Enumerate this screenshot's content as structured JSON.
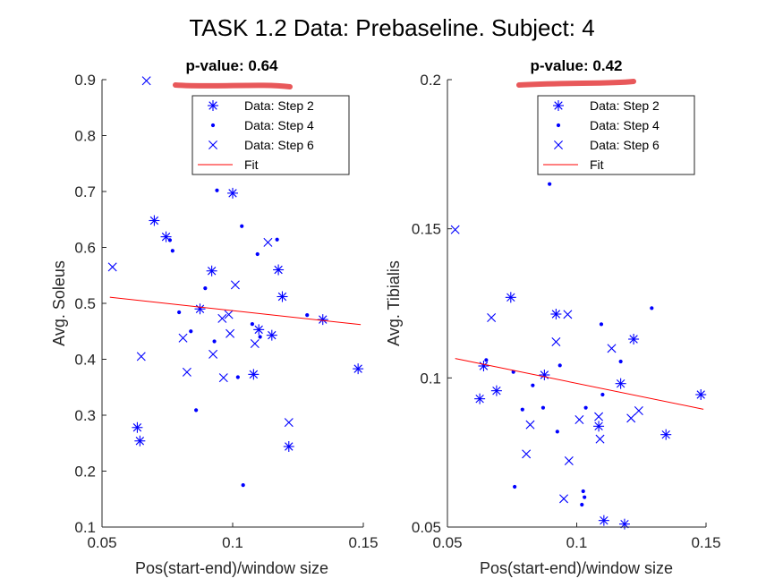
{
  "figure_title": "TASK 1.2 Data: Prebaseline. Subject: 4",
  "colors": {
    "marker": "#0000ff",
    "fit": "#ff0000",
    "highlight": "#e8585a",
    "axis": "#262626"
  },
  "chart_data": [
    {
      "type": "scatter",
      "annotation": "p-value: 0.64",
      "xlabel": "Pos(start-end)/window size",
      "ylabel": "Avg. Soleus",
      "xlim": [
        0.05,
        0.15
      ],
      "ylim": [
        0.1,
        0.9
      ],
      "xticks": [
        "0.05",
        "0.1",
        "0.15"
      ],
      "yticks": [
        "0.1",
        "0.2",
        "0.3",
        "0.4",
        "0.5",
        "0.6",
        "0.7",
        "0.8",
        "0.9"
      ],
      "legend": {
        "placement": "top-right",
        "entries": [
          "Data: Step 2",
          "Data: Step 4",
          "Data: Step 6",
          "Fit"
        ]
      },
      "series": [
        {
          "name": "Data: Step 2",
          "marker": "asterisk",
          "x": [
            0.0635,
            0.0645,
            0.07,
            0.0745,
            0.0875,
            0.092,
            0.1,
            0.108,
            0.11,
            0.115,
            0.1175,
            0.119,
            0.1215,
            0.1345,
            0.148
          ],
          "y": [
            0.278,
            0.254,
            0.648,
            0.619,
            0.49,
            0.558,
            0.697,
            0.373,
            0.453,
            0.443,
            0.56,
            0.512,
            0.244,
            0.471,
            0.383
          ]
        },
        {
          "name": "Data: Step 4",
          "marker": "dot",
          "x": [
            0.076,
            0.077,
            0.0795,
            0.084,
            0.086,
            0.0895,
            0.093,
            0.094,
            0.102,
            0.1035,
            0.104,
            0.1075,
            0.1095,
            0.1105,
            0.117,
            0.1285
          ],
          "y": [
            0.613,
            0.594,
            0.484,
            0.45,
            0.309,
            0.527,
            0.432,
            0.702,
            0.368,
            0.638,
            0.175,
            0.463,
            0.588,
            0.44,
            0.614,
            0.479
          ]
        },
        {
          "name": "Data: Step 6",
          "marker": "x",
          "x": [
            0.054,
            0.065,
            0.067,
            0.081,
            0.0825,
            0.0925,
            0.096,
            0.0965,
            0.0985,
            0.099,
            0.101,
            0.1085,
            0.1135,
            0.1215
          ],
          "y": [
            0.565,
            0.405,
            0.898,
            0.438,
            0.377,
            0.409,
            0.473,
            0.367,
            0.48,
            0.446,
            0.533,
            0.428,
            0.609,
            0.287
          ]
        }
      ],
      "fit": {
        "name": "Fit",
        "x": [
          0.053,
          0.149
        ],
        "y": [
          0.511,
          0.462
        ]
      }
    },
    {
      "type": "scatter",
      "annotation": "p-value: 0.42",
      "xlabel": "Pos(start-end)/window size",
      "ylabel": "Avg. Tibialis",
      "xlim": [
        0.05,
        0.15
      ],
      "ylim": [
        0.05,
        0.2
      ],
      "xticks": [
        "0.05",
        "0.1",
        "0.15"
      ],
      "yticks": [
        "0.05",
        "0.1",
        "0.15",
        "0.2"
      ],
      "legend": {
        "placement": "top-right",
        "entries": [
          "Data: Step 2",
          "Data: Step 4",
          "Data: Step 6",
          "Fit"
        ]
      },
      "series": [
        {
          "name": "Data: Step 2",
          "marker": "asterisk",
          "x": [
            0.0625,
            0.064,
            0.069,
            0.0745,
            0.0875,
            0.092,
            0.1085,
            0.1105,
            0.117,
            0.1185,
            0.122,
            0.1345,
            0.148
          ],
          "y": [
            0.093,
            0.104,
            0.0957,
            0.127,
            0.101,
            0.1214,
            0.0838,
            0.0522,
            0.0981,
            0.051,
            0.113,
            0.081,
            0.0944
          ]
        },
        {
          "name": "Data: Step 4",
          "marker": "dot",
          "x": [
            0.065,
            0.0755,
            0.076,
            0.079,
            0.083,
            0.087,
            0.0895,
            0.0925,
            0.0935,
            0.102,
            0.1025,
            0.103,
            0.1035,
            0.1095,
            0.11,
            0.117,
            0.129
          ],
          "y": [
            0.106,
            0.102,
            0.0635,
            0.0894,
            0.0975,
            0.09,
            0.165,
            0.082,
            0.1042,
            0.0575,
            0.062,
            0.06,
            0.09,
            0.118,
            0.0944,
            0.1055,
            0.1234
          ]
        },
        {
          "name": "Data: Step 6",
          "marker": "x",
          "x": [
            0.053,
            0.067,
            0.0805,
            0.082,
            0.092,
            0.095,
            0.0965,
            0.097,
            0.101,
            0.1085,
            0.109,
            0.1135,
            0.121,
            0.124
          ],
          "y": [
            0.1497,
            0.1202,
            0.0745,
            0.0843,
            0.1121,
            0.0595,
            0.1213,
            0.0722,
            0.086,
            0.087,
            0.0795,
            0.1099,
            0.0865,
            0.089
          ]
        }
      ],
      "fit": {
        "name": "Fit",
        "x": [
          0.053,
          0.149
        ],
        "y": [
          0.1065,
          0.0895
        ]
      }
    }
  ]
}
